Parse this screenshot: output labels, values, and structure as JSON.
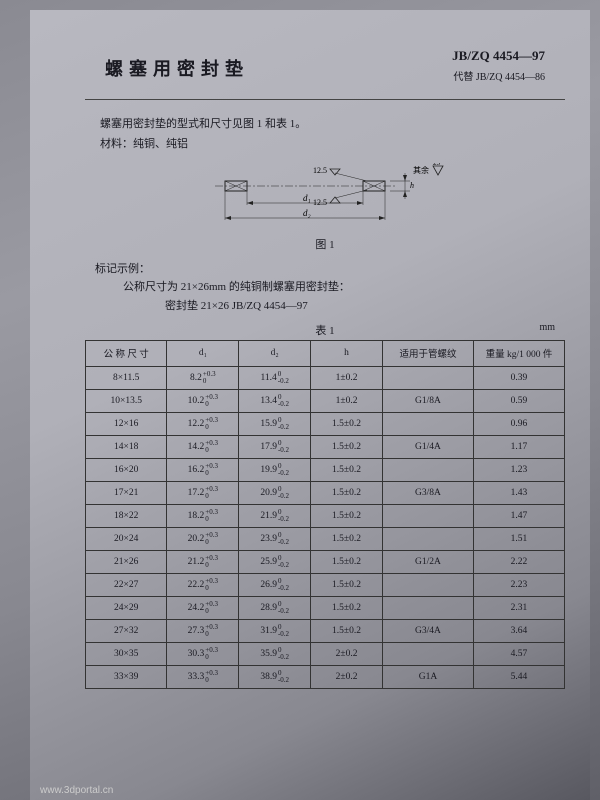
{
  "header": {
    "title": "螺塞用密封垫",
    "std_code": "JB/ZQ 4454—97",
    "std_sub": "代替 JB/ZQ 4454—86"
  },
  "intro": {
    "line1": "螺塞用密封垫的型式和尺寸见图 1 和表 1。",
    "line2": "材料：纯铜、纯铝"
  },
  "diagram": {
    "caption": "图 1",
    "labels": {
      "d1": "d₁",
      "d2": "d₂",
      "ra": "12.5",
      "other": "其余",
      "tol": "25"
    }
  },
  "example": {
    "label": "标记示例：",
    "line1": "公称尺寸为 21×26mm 的纯铜制螺塞用密封垫：",
    "line2": "密封垫   21×26   JB/ZQ 4454—97"
  },
  "table": {
    "caption": "表 1",
    "unit": "mm",
    "columns": [
      "公 称 尺 寸",
      "d₁",
      "d₂",
      "h",
      "适用于管螺纹",
      "重量 kg/1 000 件"
    ],
    "rows": [
      {
        "nom": "8×11.5",
        "d1": "8.2",
        "d1t": [
          "+0.3",
          "0"
        ],
        "d2": "11.4",
        "d2t": [
          "0",
          "-0.2"
        ],
        "h": "1±0.2",
        "pipe": "",
        "wt": "0.39"
      },
      {
        "nom": "10×13.5",
        "d1": "10.2",
        "d1t": [
          "+0.3",
          "0"
        ],
        "d2": "13.4",
        "d2t": [
          "0",
          "-0.2"
        ],
        "h": "1±0.2",
        "pipe": "G1/8A",
        "wt": "0.59"
      },
      {
        "nom": "12×16",
        "d1": "12.2",
        "d1t": [
          "+0.3",
          "0"
        ],
        "d2": "15.9",
        "d2t": [
          "0",
          "-0.2"
        ],
        "h": "1.5±0.2",
        "pipe": "",
        "wt": "0.96"
      },
      {
        "nom": "14×18",
        "d1": "14.2",
        "d1t": [
          "+0.3",
          "0"
        ],
        "d2": "17.9",
        "d2t": [
          "0",
          "-0.2"
        ],
        "h": "1.5±0.2",
        "pipe": "G1/4A",
        "wt": "1.17"
      },
      {
        "nom": "16×20",
        "d1": "16.2",
        "d1t": [
          "+0.3",
          "0"
        ],
        "d2": "19.9",
        "d2t": [
          "0",
          "-0.2"
        ],
        "h": "1.5±0.2",
        "pipe": "",
        "wt": "1.23"
      },
      {
        "nom": "17×21",
        "d1": "17.2",
        "d1t": [
          "+0.3",
          "0"
        ],
        "d2": "20.9",
        "d2t": [
          "0",
          "-0.2"
        ],
        "h": "1.5±0.2",
        "pipe": "G3/8A",
        "wt": "1.43"
      },
      {
        "nom": "18×22",
        "d1": "18.2",
        "d1t": [
          "+0.3",
          "0"
        ],
        "d2": "21.9",
        "d2t": [
          "0",
          "-0.2"
        ],
        "h": "1.5±0.2",
        "pipe": "",
        "wt": "1.47"
      },
      {
        "nom": "20×24",
        "d1": "20.2",
        "d1t": [
          "+0.3",
          "0"
        ],
        "d2": "23.9",
        "d2t": [
          "0",
          "-0.2"
        ],
        "h": "1.5±0.2",
        "pipe": "",
        "wt": "1.51"
      },
      {
        "nom": "21×26",
        "d1": "21.2",
        "d1t": [
          "+0.3",
          "0"
        ],
        "d2": "25.9",
        "d2t": [
          "0",
          "-0.2"
        ],
        "h": "1.5±0.2",
        "pipe": "G1/2A",
        "wt": "2.22"
      },
      {
        "nom": "22×27",
        "d1": "22.2",
        "d1t": [
          "+0.3",
          "0"
        ],
        "d2": "26.9",
        "d2t": [
          "0",
          "-0.2"
        ],
        "h": "1.5±0.2",
        "pipe": "",
        "wt": "2.23"
      },
      {
        "nom": "24×29",
        "d1": "24.2",
        "d1t": [
          "+0.3",
          "0"
        ],
        "d2": "28.9",
        "d2t": [
          "0",
          "-0.2"
        ],
        "h": "1.5±0.2",
        "pipe": "",
        "wt": "2.31"
      },
      {
        "nom": "27×32",
        "d1": "27.3",
        "d1t": [
          "+0.3",
          "0"
        ],
        "d2": "31.9",
        "d2t": [
          "0",
          "-0.2"
        ],
        "h": "1.5±0.2",
        "pipe": "G3/4A",
        "wt": "3.64"
      },
      {
        "nom": "30×35",
        "d1": "30.3",
        "d1t": [
          "+0.3",
          "0"
        ],
        "d2": "35.9",
        "d2t": [
          "0",
          "-0.2"
        ],
        "h": "2±0.2",
        "pipe": "",
        "wt": "4.57"
      },
      {
        "nom": "33×39",
        "d1": "33.3",
        "d1t": [
          "+0.3",
          "0"
        ],
        "d2": "38.9",
        "d2t": [
          "0",
          "-0.2"
        ],
        "h": "2±0.2",
        "pipe": "G1A",
        "wt": "5.44"
      }
    ]
  },
  "footer": "www.3dportal.cn"
}
